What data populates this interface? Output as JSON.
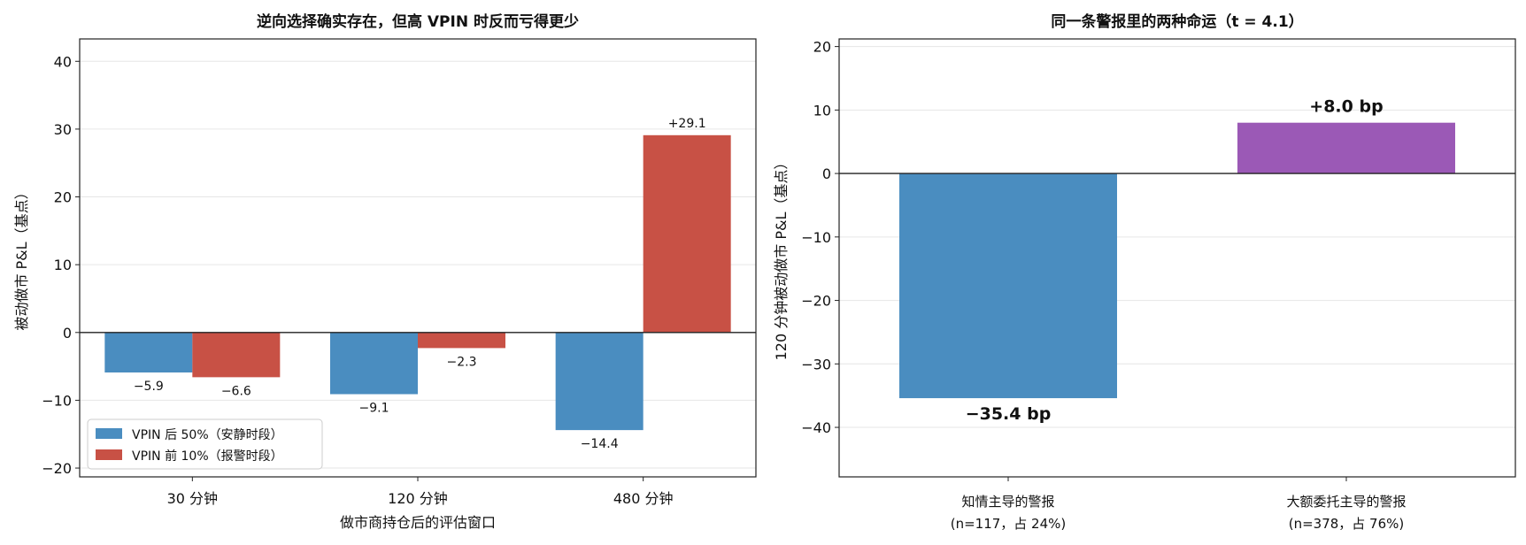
{
  "chart_data": [
    {
      "type": "bar",
      "title": "逆向选择确实存在，但高 VPIN 时反而亏得更少",
      "xlabel": "做市商持仓后的评估窗口",
      "ylabel": "被动做市 P&L（基点）",
      "categories": [
        "30 分钟",
        "120 分钟",
        "480 分钟"
      ],
      "series": [
        {
          "name": "VPIN 后 50%（安静时段）",
          "color": "#4a8dc0",
          "values": [
            -5.9,
            -9.1,
            -14.4
          ],
          "labels": [
            "−5.9",
            "−9.1",
            "−14.4"
          ]
        },
        {
          "name": "VPIN 前 10%（报警时段）",
          "color": "#c85145",
          "values": [
            -6.6,
            -2.3,
            29.1
          ],
          "labels": [
            "−6.6",
            "−2.3",
            "+29.1"
          ]
        }
      ],
      "ylim": [
        -21.3,
        43.3
      ],
      "yticks": [
        -20,
        -10,
        0,
        10,
        20,
        30,
        40
      ],
      "ytick_labels": [
        "−20",
        "−10",
        "0",
        "10",
        "20",
        "30",
        "40"
      ],
      "grid": true,
      "legend": "lower-left"
    },
    {
      "type": "bar",
      "title": "同一条警报里的两种命运（t = 4.1）",
      "ylabel": "120 分钟被动做市 P&L（基点）",
      "categories": [
        {
          "line1": "知情主导的警报",
          "line2": "(n=117，占 24%)"
        },
        {
          "line1": "大额委托主导的警报",
          "line2": "(n=378，占 76%)"
        }
      ],
      "values": [
        -35.4,
        8.0
      ],
      "labels": [
        "−35.4 bp",
        "+8.0 bp"
      ],
      "colors": [
        "#4a8dc0",
        "#9b59b6"
      ],
      "ylim": [
        -47.8,
        21.2
      ],
      "yticks": [
        -40,
        -30,
        -20,
        -10,
        0,
        10,
        20
      ],
      "ytick_labels": [
        "−40",
        "−30",
        "−20",
        "−10",
        "0",
        "10",
        "20"
      ],
      "grid": true
    }
  ]
}
